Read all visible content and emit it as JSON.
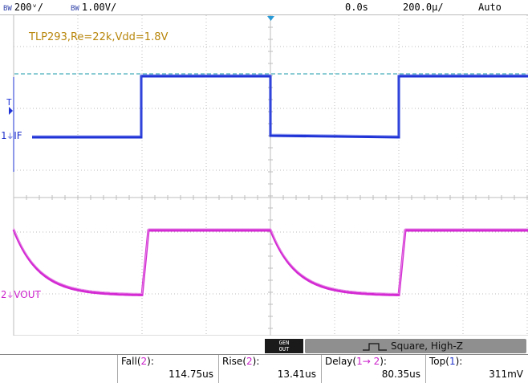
{
  "status_bar": {
    "ch1_bw": "BW",
    "ch1_scale": "200ᵛ/",
    "ch2_bw": "BW",
    "ch2_scale": "1.00V/",
    "time_offset": "0.0s",
    "time_scale": "200.0µ/",
    "trigger_mode": "Auto"
  },
  "annotation": "TLP293,Re=22k,Vdd=1.8V",
  "channels": {
    "ch1": {
      "number": "1",
      "label": "IF",
      "color": "#1f33d6"
    },
    "ch2": {
      "number": "2",
      "label": "VOUT",
      "color": "#d32ad3"
    }
  },
  "trigger_marker": "T",
  "generator": {
    "badge_line1": "GEN",
    "badge_line2": "OUT",
    "label": "Square, High-Z"
  },
  "measurements": [
    {
      "name": "Fall",
      "channel": "2",
      "value": "114.75us"
    },
    {
      "name": "Rise",
      "channel": "2",
      "value": "13.41us"
    },
    {
      "name": "Delay",
      "channel": "1→ 2",
      "value": "80.35us"
    },
    {
      "name": "Top",
      "channel": "1",
      "value": "311mV"
    }
  ],
  "colors": {
    "ch1": "#1f33d6",
    "ch2": "#d32ad3",
    "annotation": "#b8860b",
    "trigger_level": "#1a9aaa",
    "grid": "#bdbdbd"
  }
}
